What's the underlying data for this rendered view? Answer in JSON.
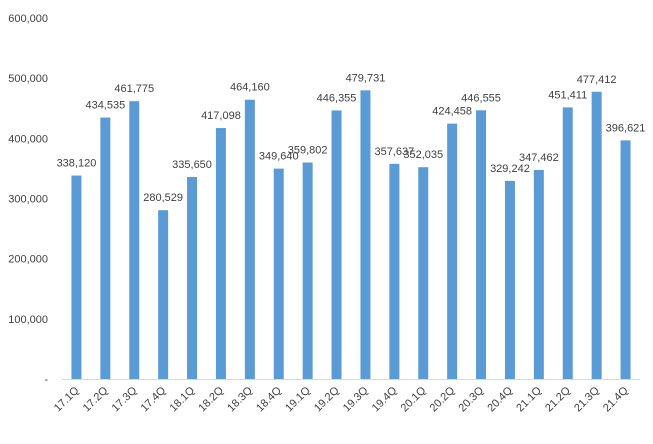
{
  "chart_data": {
    "type": "bar",
    "title": "",
    "xlabel": "",
    "ylabel": "",
    "ylim": [
      0,
      600000
    ],
    "y_ticks": [
      0,
      100000,
      200000,
      300000,
      400000,
      500000,
      600000
    ],
    "y_tick_labels": [
      "-",
      "100,000",
      "200,000",
      "300,000",
      "400,000",
      "500,000",
      "600,000"
    ],
    "grid": false,
    "legend": "none",
    "bar_color": "#5B9BD5",
    "categories": [
      "17.1Q",
      "17.2Q",
      "17.3Q",
      "17.4Q",
      "18.1Q",
      "18.2Q",
      "18.3Q",
      "18.4Q",
      "19.1Q",
      "19.2Q",
      "19.3Q",
      "19.4Q",
      "20.1Q",
      "20.2Q",
      "20.3Q",
      "20.4Q",
      "21.1Q",
      "21.2Q",
      "21.3Q",
      "21.4Q"
    ],
    "values": [
      338120,
      434535,
      461775,
      280529,
      335650,
      417098,
      464160,
      349640,
      359802,
      446355,
      479731,
      357637,
      352035,
      424458,
      446555,
      329242,
      347462,
      451411,
      477412,
      396621
    ],
    "value_labels": [
      "338,120",
      "434,535",
      "461,775",
      "280,529",
      "335,650",
      "417,098",
      "464,160",
      "349,640",
      "359,802",
      "446,355",
      "479,731",
      "357,637",
      "352,035",
      "424,458",
      "446,555",
      "329,242",
      "347,462",
      "451,411",
      "477,412",
      "396,621"
    ]
  }
}
